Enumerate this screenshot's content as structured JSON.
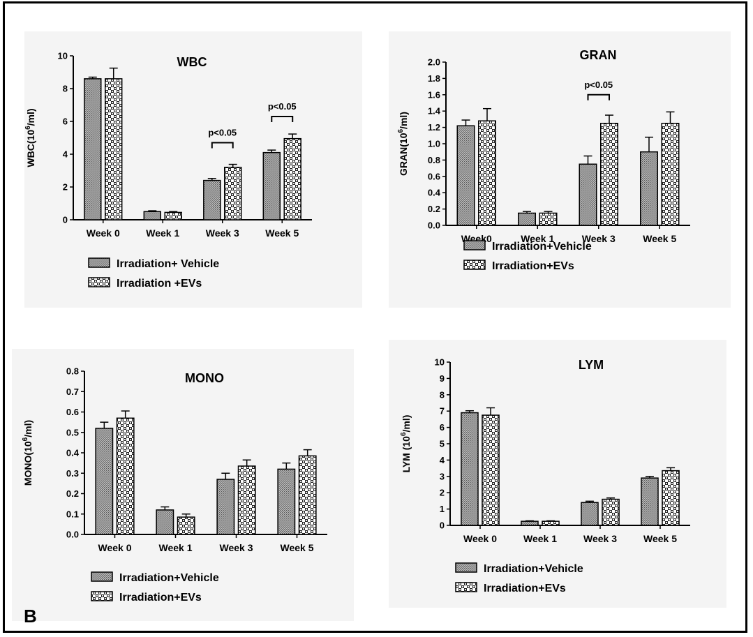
{
  "figure_label": "B",
  "chart_data": [
    {
      "type": "bar",
      "title": "WBC",
      "ylabel_main": "WBC(10",
      "ylabel_sup": "6",
      "ylabel_end": "/ml)",
      "ylim": [
        0,
        10
      ],
      "yticks": [
        "0",
        "2",
        "4",
        "6",
        "8",
        "10"
      ],
      "categories": [
        "Week 0",
        "Week 1",
        "Week 3",
        "Week 5"
      ],
      "series": [
        {
          "name": "Irradiation+ Vehicle",
          "values": [
            8.6,
            0.5,
            2.4,
            4.1
          ],
          "errors": [
            0.1,
            0.05,
            0.12,
            0.15
          ]
        },
        {
          "name": "Irradiation +EVs",
          "values": [
            8.6,
            0.45,
            3.2,
            4.95
          ],
          "errors": [
            0.65,
            0.05,
            0.18,
            0.28
          ]
        }
      ],
      "annotations": [
        {
          "category_index": 2,
          "text": "p<0.05",
          "y": 4.7
        },
        {
          "category_index": 3,
          "text": "p<0.05",
          "y": 6.3
        }
      ]
    },
    {
      "type": "bar",
      "title": "GRAN",
      "ylabel_main": "GRAN(10",
      "ylabel_sup": "6",
      "ylabel_end": "/ml)",
      "ylim": [
        0,
        2.0
      ],
      "yticks": [
        "0.0",
        "0.2",
        "0.4",
        "0.6",
        "0.8",
        "1.0",
        "1.2",
        "1.4",
        "1.6",
        "1.8",
        "2.0"
      ],
      "categories": [
        "Week0",
        "Week 1",
        "Week 3",
        "Week 5"
      ],
      "series": [
        {
          "name": "Irradiation+Vehicle",
          "values": [
            1.22,
            0.15,
            0.75,
            0.9
          ],
          "errors": [
            0.07,
            0.02,
            0.1,
            0.18
          ]
        },
        {
          "name": "Irradiation+EVs",
          "values": [
            1.28,
            0.15,
            1.25,
            1.25
          ],
          "errors": [
            0.15,
            0.02,
            0.1,
            0.14
          ]
        }
      ],
      "annotations": [
        {
          "category_index": 2,
          "text": "p<0.05",
          "y": 1.6
        }
      ]
    },
    {
      "type": "bar",
      "title": "MONO",
      "ylabel_main": "MONO(10",
      "ylabel_sup": "6",
      "ylabel_end": "/ml)",
      "ylim": [
        0,
        0.8
      ],
      "yticks": [
        "0.0",
        "0.1",
        "0.2",
        "0.3",
        "0.4",
        "0.5",
        "0.6",
        "0.7",
        "0.8"
      ],
      "categories": [
        "Week 0",
        "Week 1",
        "Week 3",
        "Week 5"
      ],
      "series": [
        {
          "name": "Irradiation+Vehicle",
          "values": [
            0.52,
            0.12,
            0.27,
            0.32
          ],
          "errors": [
            0.03,
            0.015,
            0.03,
            0.03
          ]
        },
        {
          "name": "Irradiation+EVs",
          "values": [
            0.57,
            0.085,
            0.335,
            0.385
          ],
          "errors": [
            0.035,
            0.015,
            0.03,
            0.03
          ]
        }
      ],
      "annotations": []
    },
    {
      "type": "bar",
      "title": "LYM",
      "ylabel_main": "LYM (10",
      "ylabel_sup": "6",
      "ylabel_end": "/ml)",
      "ylim": [
        0,
        10
      ],
      "yticks": [
        "0",
        "1",
        "2",
        "3",
        "4",
        "5",
        "6",
        "7",
        "8",
        "9",
        "10"
      ],
      "categories": [
        "Week 0",
        "Week 1",
        "Week 3",
        "Week 5"
      ],
      "series": [
        {
          "name": "Irradiation+Vehicle",
          "values": [
            6.9,
            0.25,
            1.4,
            2.9
          ],
          "errors": [
            0.12,
            0.03,
            0.08,
            0.1
          ]
        },
        {
          "name": "Irradiation+EVs",
          "values": [
            6.75,
            0.25,
            1.6,
            3.35
          ],
          "errors": [
            0.45,
            0.03,
            0.08,
            0.18
          ]
        }
      ],
      "annotations": []
    }
  ],
  "colors": {
    "bar_fill": "#ffffff",
    "pattern_ink": "#000000",
    "panel_bg": "#f4f4f4",
    "axis": "#000000"
  }
}
